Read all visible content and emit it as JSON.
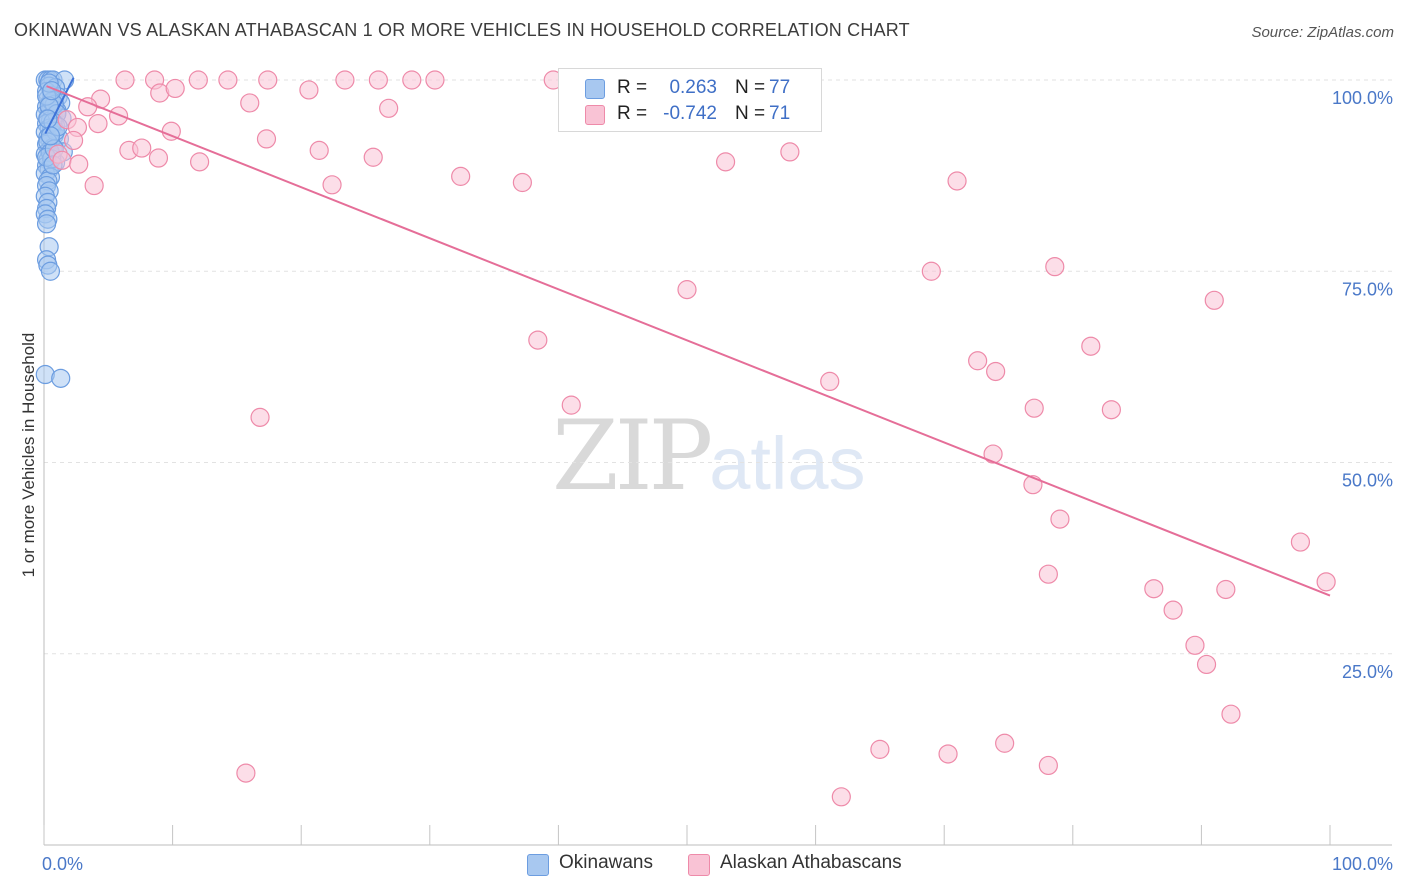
{
  "title": "OKINAWAN VS ALASKAN ATHABASCAN 1 OR MORE VEHICLES IN HOUSEHOLD CORRELATION CHART",
  "source": "Source: ZipAtlas.com",
  "watermark": {
    "zip": "ZIP",
    "atlas": "atlas"
  },
  "legend": {
    "r_label": "R =",
    "n_label": "N =",
    "rows": [
      {
        "series": "Okinawans",
        "r": "0.263",
        "n": "77",
        "color": "#a8c8f0",
        "edge": "#6c9de0"
      },
      {
        "series": "Alaskan Athabascans",
        "r": "-0.742",
        "n": "71",
        "color": "#f9c3d5",
        "edge": "#ee8aa9"
      }
    ]
  },
  "chart_data": {
    "type": "scatter",
    "title": "OKINAWAN VS ALASKAN ATHABASCAN 1 OR MORE VEHICLES IN HOUSEHOLD CORRELATION CHART",
    "xlabel": "",
    "ylabel": "1 or more Vehicles in Household",
    "xlim": [
      0,
      100
    ],
    "ylim": [
      0,
      100
    ],
    "x_tick_labels": [
      "0.0%",
      "100.0%"
    ],
    "y_tick_labels": [
      "25.0%",
      "50.0%",
      "75.0%",
      "100.0%"
    ],
    "y_ticks": [
      25,
      50,
      75,
      100
    ],
    "grid": true,
    "legend_position": "bottom",
    "series": [
      {
        "name": "Okinawans",
        "color": "#a8c8f0",
        "edge": "#6c9de0",
        "line_color": "#3e73d8",
        "trend": [
          [
            0.1,
            93.0
          ],
          [
            2.3,
            100.3
          ]
        ],
        "points": [
          [
            0.1,
            100.0
          ],
          [
            0.3,
            100.0
          ],
          [
            0.5,
            100.0
          ],
          [
            0.7,
            100.0
          ],
          [
            1.6,
            100.0
          ],
          [
            0.4,
            99.2
          ],
          [
            0.9,
            99.0
          ],
          [
            0.2,
            98.5
          ],
          [
            0.6,
            98.0
          ],
          [
            1.1,
            97.8
          ],
          [
            0.3,
            97.5
          ],
          [
            0.8,
            97.3
          ],
          [
            0.5,
            97.0
          ],
          [
            1.3,
            97.0
          ],
          [
            0.2,
            96.5
          ],
          [
            0.6,
            96.3
          ],
          [
            1.0,
            96.0
          ],
          [
            0.4,
            95.8
          ],
          [
            0.1,
            95.5
          ],
          [
            0.7,
            95.3
          ],
          [
            0.3,
            95.0
          ],
          [
            1.4,
            95.0
          ],
          [
            0.5,
            94.7
          ],
          [
            0.2,
            94.3
          ],
          [
            0.9,
            94.0
          ],
          [
            0.4,
            93.7
          ],
          [
            0.6,
            93.5
          ],
          [
            0.1,
            93.2
          ],
          [
            0.8,
            92.8
          ],
          [
            0.3,
            92.5
          ],
          [
            1.2,
            92.3
          ],
          [
            0.5,
            92.0
          ],
          [
            0.2,
            91.6
          ],
          [
            0.7,
            91.2
          ],
          [
            0.4,
            90.8
          ],
          [
            1.5,
            90.6
          ],
          [
            0.1,
            90.3
          ],
          [
            0.6,
            90.0
          ],
          [
            0.3,
            89.5
          ],
          [
            0.9,
            89.2
          ],
          [
            0.2,
            88.8
          ],
          [
            0.4,
            88.3
          ],
          [
            0.1,
            87.8
          ],
          [
            0.5,
            87.3
          ],
          [
            0.3,
            86.8
          ],
          [
            0.2,
            86.2
          ],
          [
            0.4,
            85.5
          ],
          [
            0.1,
            84.8
          ],
          [
            0.3,
            84.0
          ],
          [
            0.2,
            83.2
          ],
          [
            0.1,
            82.5
          ],
          [
            0.3,
            81.8
          ],
          [
            0.2,
            81.2
          ],
          [
            0.4,
            78.2
          ],
          [
            0.2,
            76.5
          ],
          [
            0.3,
            75.8
          ],
          [
            0.5,
            75.0
          ],
          [
            0.1,
            61.5
          ],
          [
            1.3,
            61.0
          ],
          [
            0.6,
            97.2
          ],
          [
            0.8,
            96.8
          ],
          [
            1.0,
            95.6
          ],
          [
            0.2,
            97.9
          ],
          [
            0.4,
            96.6
          ],
          [
            0.7,
            94.5
          ],
          [
            0.9,
            93.3
          ],
          [
            0.3,
            91.9
          ],
          [
            0.5,
            90.5
          ],
          [
            0.6,
            89.7
          ],
          [
            0.2,
            89.9
          ],
          [
            0.8,
            91.0
          ],
          [
            1.1,
            93.9
          ],
          [
            0.4,
            99.6
          ],
          [
            0.6,
            98.6
          ],
          [
            0.3,
            94.9
          ],
          [
            0.5,
            92.7
          ],
          [
            0.7,
            88.9
          ]
        ]
      },
      {
        "name": "Alaskan Athabascans",
        "color": "#f9c3d5",
        "edge": "#ee8aa9",
        "line_color": "#e56e98",
        "trend": [
          [
            0.2,
            99.2
          ],
          [
            100.0,
            32.6
          ]
        ],
        "points": [
          [
            6.3,
            100.0
          ],
          [
            8.6,
            100.0
          ],
          [
            12.0,
            100.0
          ],
          [
            14.3,
            100.0
          ],
          [
            17.4,
            100.0
          ],
          [
            23.4,
            100.0
          ],
          [
            26.0,
            100.0
          ],
          [
            28.6,
            100.0
          ],
          [
            30.4,
            100.0
          ],
          [
            39.6,
            100.0
          ],
          [
            9.0,
            98.3
          ],
          [
            10.2,
            98.9
          ],
          [
            20.6,
            98.7
          ],
          [
            4.4,
            97.5
          ],
          [
            26.8,
            96.3
          ],
          [
            3.4,
            96.5
          ],
          [
            5.8,
            95.3
          ],
          [
            1.8,
            94.8
          ],
          [
            4.2,
            94.3
          ],
          [
            2.6,
            93.8
          ],
          [
            9.9,
            93.3
          ],
          [
            17.3,
            92.3
          ],
          [
            2.3,
            92.1
          ],
          [
            6.6,
            90.8
          ],
          [
            7.6,
            91.1
          ],
          [
            21.4,
            90.8
          ],
          [
            1.1,
            90.3
          ],
          [
            8.9,
            89.8
          ],
          [
            25.6,
            89.9
          ],
          [
            12.1,
            89.3
          ],
          [
            1.4,
            89.5
          ],
          [
            2.7,
            89.0
          ],
          [
            53.0,
            89.3
          ],
          [
            58.0,
            90.6
          ],
          [
            32.4,
            87.4
          ],
          [
            37.2,
            86.6
          ],
          [
            22.4,
            86.3
          ],
          [
            3.9,
            86.2
          ],
          [
            71.0,
            86.8
          ],
          [
            69.0,
            75.0
          ],
          [
            78.6,
            75.6
          ],
          [
            50.0,
            72.6
          ],
          [
            91.0,
            71.2
          ],
          [
            38.4,
            66.0
          ],
          [
            81.4,
            65.2
          ],
          [
            72.6,
            63.3
          ],
          [
            74.0,
            61.9
          ],
          [
            61.1,
            60.6
          ],
          [
            41.0,
            57.5
          ],
          [
            77.0,
            57.1
          ],
          [
            83.0,
            56.9
          ],
          [
            16.8,
            55.9
          ],
          [
            73.8,
            51.1
          ],
          [
            76.9,
            47.1
          ],
          [
            79.0,
            42.6
          ],
          [
            97.7,
            39.6
          ],
          [
            78.1,
            35.4
          ],
          [
            86.3,
            33.5
          ],
          [
            91.9,
            33.4
          ],
          [
            99.7,
            34.4
          ],
          [
            87.8,
            30.7
          ],
          [
            89.5,
            26.1
          ],
          [
            90.4,
            23.6
          ],
          [
            92.3,
            17.1
          ],
          [
            65.0,
            12.5
          ],
          [
            70.3,
            11.9
          ],
          [
            74.7,
            13.3
          ],
          [
            78.1,
            10.4
          ],
          [
            15.7,
            9.4
          ],
          [
            62.0,
            6.3
          ],
          [
            16.0,
            97.0
          ]
        ]
      }
    ]
  }
}
